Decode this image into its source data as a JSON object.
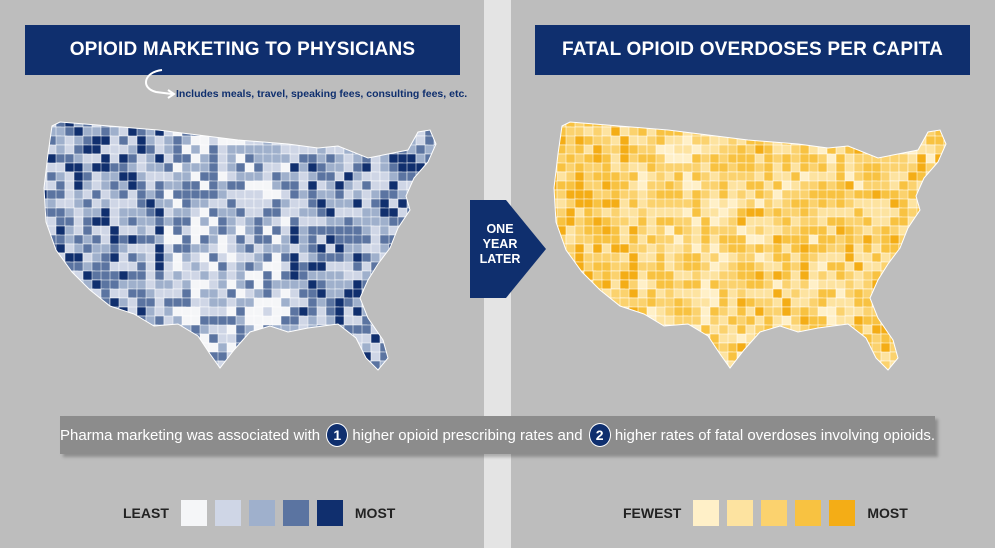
{
  "left_panel": {
    "title": "OPIOID MARKETING TO PHYSICIANS",
    "note": "Includes meals, travel, speaking fees, consulting fees, etc.",
    "legend": {
      "low_label": "LEAST",
      "high_label": "MOST",
      "swatches": [
        "#f5f6f8",
        "#cfd6e6",
        "#9fb0cc",
        "#5b74a1",
        "#102f6e"
      ]
    },
    "map_colors": [
      "#f5f6f8",
      "#cfd6e6",
      "#9fb0cc",
      "#5b74a1",
      "#102f6e"
    ]
  },
  "right_panel": {
    "title": "FATAL OPIOID OVERDOSES PER CAPITA",
    "legend": {
      "low_label": "FEWEST",
      "high_label": "MOST",
      "swatches": [
        "#fff0c8",
        "#fde3a0",
        "#fbd26e",
        "#f8c241",
        "#f4ad16"
      ]
    },
    "map_colors": [
      "#fff0c8",
      "#fde3a0",
      "#fbd26e",
      "#f8c241",
      "#f4ad16"
    ]
  },
  "transition": {
    "line1": "ONE",
    "line2": "YEAR",
    "line3": "LATER",
    "color": "#0f2f6e"
  },
  "summary": {
    "part1": "Pharma marketing was associated with",
    "badge1": "1",
    "part2": "higher opioid prescribing rates and",
    "badge2": "2",
    "part3": "higher rates of fatal overdoses involving opioids."
  }
}
